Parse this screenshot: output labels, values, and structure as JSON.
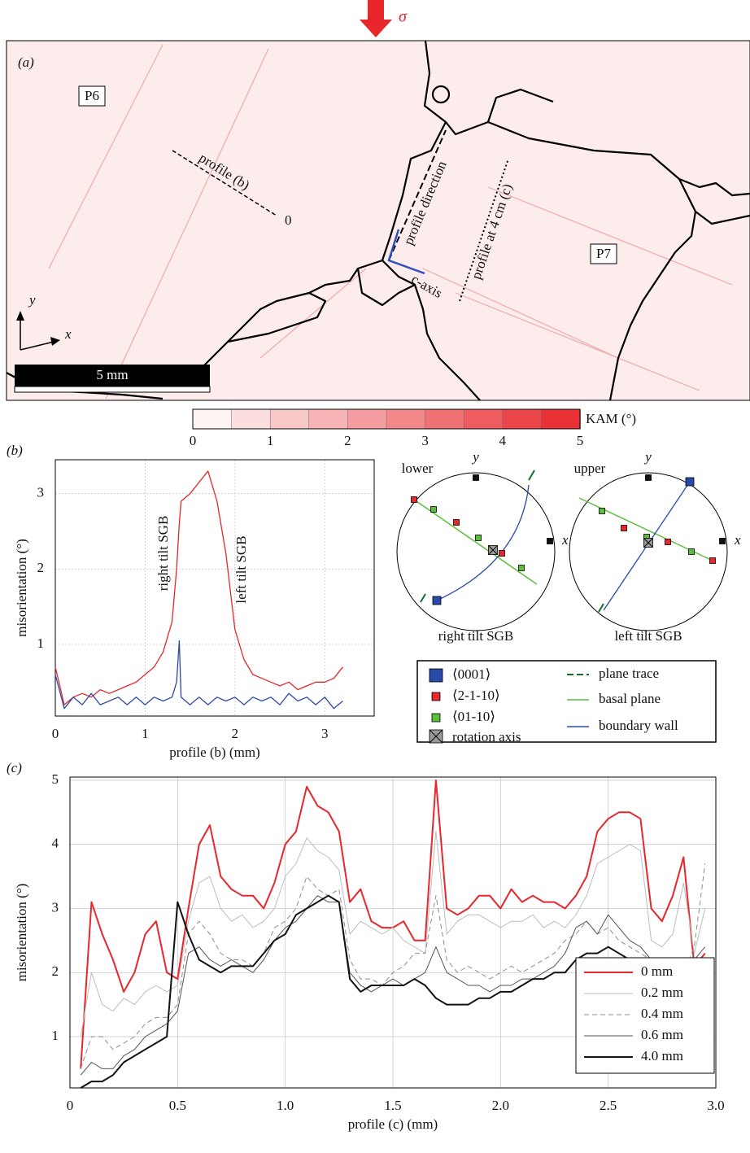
{
  "panel_a": {
    "panel_label": "(a)",
    "stress": "σ",
    "grains": [
      "P6",
      "P7"
    ],
    "annotations": {
      "profile_b": "profile (b)",
      "origin": "0",
      "profile_direction": "profile direction",
      "profile_c": "profile at 4 cm (c)",
      "c_axis": "c-axis"
    },
    "axes": {
      "x": "x",
      "y": "y"
    },
    "scale_bar": "5 mm"
  },
  "colorbar": {
    "label": "KAM (°)",
    "lim": [
      0,
      5
    ],
    "ticks": [
      0,
      1,
      2,
      3,
      4,
      5
    ],
    "colors": [
      "#ffffff",
      "#e8262b"
    ]
  },
  "chart_data": [
    {
      "type": "line",
      "panel_label": "(b)",
      "xlabel": "profile (b) (mm)",
      "ylabel": "misorientation (°)",
      "annotations": [
        "right tilt SGB",
        "left tilt SGB"
      ],
      "x": [
        0.0,
        0.1,
        0.2,
        0.3,
        0.4,
        0.5,
        0.6,
        0.7,
        0.8,
        0.9,
        1.0,
        1.1,
        1.2,
        1.3,
        1.35,
        1.38,
        1.4,
        1.5,
        1.6,
        1.7,
        1.8,
        1.9,
        2.0,
        2.1,
        2.2,
        2.3,
        2.4,
        2.5,
        2.6,
        2.7,
        2.8,
        2.9,
        3.0,
        3.1,
        3.2
      ],
      "series": [
        {
          "color": "#e8262b",
          "values": [
            0.7,
            0.2,
            0.3,
            0.35,
            0.3,
            0.4,
            0.35,
            0.4,
            0.45,
            0.5,
            0.6,
            0.7,
            0.9,
            1.3,
            2.0,
            2.6,
            2.9,
            3.0,
            3.15,
            3.3,
            2.9,
            2.2,
            1.2,
            0.8,
            0.6,
            0.55,
            0.5,
            0.45,
            0.5,
            0.4,
            0.45,
            0.5,
            0.5,
            0.55,
            0.7
          ]
        },
        {
          "color": "#2a4aa8",
          "values": [
            0.6,
            0.15,
            0.3,
            0.2,
            0.35,
            0.2,
            0.25,
            0.3,
            0.2,
            0.3,
            0.2,
            0.3,
            0.25,
            0.3,
            0.5,
            1.05,
            0.3,
            0.2,
            0.3,
            0.2,
            0.3,
            0.25,
            0.3,
            0.2,
            0.3,
            0.25,
            0.3,
            0.2,
            0.35,
            0.25,
            0.3,
            0.2,
            0.3,
            0.15,
            0.25
          ]
        }
      ],
      "xlim": [
        0,
        3.55
      ],
      "ylim": [
        0.05,
        3.45
      ],
      "xticks": [
        0,
        1,
        2,
        3
      ],
      "yticks": [
        1,
        2,
        3
      ],
      "grid": true
    },
    {
      "type": "line",
      "panel_label": "(c)",
      "xlabel": "profile (c) (mm)",
      "ylabel": "misorientation (°)",
      "x": [
        0.05,
        0.1,
        0.15,
        0.2,
        0.25,
        0.3,
        0.35,
        0.4,
        0.45,
        0.5,
        0.55,
        0.6,
        0.65,
        0.7,
        0.75,
        0.8,
        0.85,
        0.9,
        0.95,
        1.0,
        1.05,
        1.1,
        1.15,
        1.2,
        1.25,
        1.3,
        1.35,
        1.4,
        1.45,
        1.5,
        1.55,
        1.6,
        1.65,
        1.7,
        1.75,
        1.8,
        1.85,
        1.9,
        1.95,
        2.0,
        2.05,
        2.1,
        2.15,
        2.2,
        2.25,
        2.3,
        2.35,
        2.4,
        2.45,
        2.5,
        2.55,
        2.6,
        2.65,
        2.7,
        2.75,
        2.8,
        2.85,
        2.9,
        2.95
      ],
      "series": [
        {
          "name": "0 mm",
          "color": "#e8262b",
          "linewidth": 2,
          "values": [
            0.5,
            3.1,
            2.6,
            2.2,
            1.7,
            2.0,
            2.6,
            2.8,
            2.0,
            1.9,
            3.0,
            4.0,
            4.3,
            3.5,
            3.3,
            3.2,
            3.2,
            3.0,
            3.4,
            4.0,
            4.2,
            4.9,
            4.6,
            4.5,
            4.2,
            3.1,
            3.3,
            2.8,
            2.7,
            2.7,
            2.8,
            2.5,
            2.5,
            5.0,
            3.0,
            2.9,
            3.0,
            3.2,
            3.2,
            3.0,
            3.3,
            3.1,
            3.2,
            3.1,
            3.1,
            3.0,
            3.2,
            3.5,
            4.2,
            4.4,
            4.5,
            4.5,
            4.4,
            3.0,
            2.8,
            3.2,
            3.8,
            2.1,
            2.3
          ]
        },
        {
          "name": "0.2 mm",
          "color": "#bdbdbd",
          "linewidth": 1,
          "values": [
            1.0,
            2.0,
            1.5,
            1.4,
            1.6,
            1.5,
            1.7,
            1.8,
            1.7,
            1.8,
            2.8,
            3.4,
            3.5,
            3.0,
            2.8,
            2.9,
            2.7,
            2.8,
            3.0,
            3.5,
            3.7,
            4.1,
            3.9,
            3.8,
            3.6,
            2.6,
            2.8,
            2.7,
            2.6,
            2.7,
            2.5,
            2.4,
            2.3,
            4.2,
            2.6,
            2.8,
            2.9,
            2.9,
            2.8,
            2.7,
            2.8,
            2.8,
            2.9,
            2.7,
            2.8,
            2.7,
            2.9,
            3.2,
            3.7,
            3.8,
            3.9,
            4.0,
            3.9,
            2.5,
            2.4,
            2.6,
            3.4,
            2.3,
            3.0
          ]
        },
        {
          "name": "0.4 mm",
          "color": "#8c8c8c",
          "linewidth": 1,
          "dashed": true,
          "values": [
            0.5,
            1.0,
            1.0,
            0.8,
            0.9,
            1.0,
            1.2,
            1.3,
            1.3,
            1.5,
            2.6,
            2.8,
            2.6,
            2.3,
            2.2,
            2.2,
            2.1,
            2.3,
            2.7,
            2.8,
            3.0,
            3.5,
            3.3,
            3.2,
            3.3,
            2.2,
            1.9,
            1.9,
            1.8,
            2.0,
            2.1,
            2.3,
            2.3,
            3.2,
            2.2,
            2.0,
            2.1,
            2.0,
            1.9,
            2.0,
            2.1,
            2.0,
            2.1,
            2.2,
            2.3,
            2.5,
            2.6,
            2.8,
            2.6,
            2.7,
            2.5,
            2.4,
            2.3,
            2.2,
            2.1,
            2.2,
            2.0,
            2.4,
            3.7
          ]
        },
        {
          "name": "0.6 mm",
          "color": "#555555",
          "linewidth": 1,
          "values": [
            0.4,
            0.6,
            0.5,
            0.5,
            0.7,
            0.8,
            1.0,
            1.1,
            1.2,
            1.4,
            2.3,
            2.4,
            2.2,
            2.1,
            2.2,
            2.1,
            2.0,
            2.2,
            2.5,
            2.7,
            2.8,
            3.0,
            3.2,
            3.1,
            3.1,
            2.0,
            1.8,
            1.7,
            1.8,
            1.9,
            1.8,
            1.9,
            2.0,
            2.4,
            2.0,
            1.9,
            1.8,
            1.8,
            1.7,
            1.8,
            1.8,
            1.9,
            1.9,
            2.0,
            2.1,
            2.3,
            2.7,
            2.8,
            2.6,
            2.9,
            2.7,
            2.5,
            2.4,
            2.2,
            2.0,
            2.0,
            1.8,
            2.2,
            2.4
          ]
        },
        {
          "name": "4.0 mm",
          "color": "#111111",
          "linewidth": 2,
          "values": [
            0.2,
            0.3,
            0.3,
            0.4,
            0.6,
            0.7,
            0.8,
            0.9,
            1.0,
            3.1,
            2.6,
            2.2,
            2.1,
            2.0,
            2.1,
            2.1,
            2.1,
            2.3,
            2.5,
            2.6,
            2.9,
            3.0,
            3.1,
            3.2,
            3.1,
            1.9,
            1.7,
            1.8,
            1.8,
            1.8,
            1.8,
            1.9,
            1.8,
            1.6,
            1.5,
            1.5,
            1.5,
            1.6,
            1.6,
            1.7,
            1.7,
            1.8,
            1.9,
            1.9,
            2.0,
            2.0,
            2.2,
            2.3,
            2.3,
            2.4,
            2.3,
            2.2,
            2.2,
            2.1,
            2.0,
            1.9,
            1.8,
            1.7,
            1.7
          ]
        }
      ],
      "xlim": [
        0,
        3.0
      ],
      "ylim": [
        0.2,
        5.05
      ],
      "xticks": [
        0,
        0.5,
        {
          "value": 1,
          "label": "1.0"
        },
        1.5,
        {
          "value": 2,
          "label": "2.0"
        },
        2.5,
        {
          "value": 3,
          "label": "3.0"
        }
      ],
      "yticks": [
        1,
        2,
        3,
        4,
        5
      ],
      "grid": true,
      "legend": "lower right"
    }
  ],
  "stereonets": {
    "axis_labels": {
      "x": "x",
      "y": "y"
    },
    "panels": [
      {
        "hemisphere": "lower",
        "caption": "right tilt SGB"
      },
      {
        "hemisphere": "upper",
        "caption": "left tilt SGB"
      }
    ],
    "legend": [
      "⟨0001⟩",
      "⟨2-1-10⟩",
      "⟨01-10⟩",
      "rotation axis",
      "plane trace",
      "basal plane",
      "boundary wall"
    ]
  }
}
